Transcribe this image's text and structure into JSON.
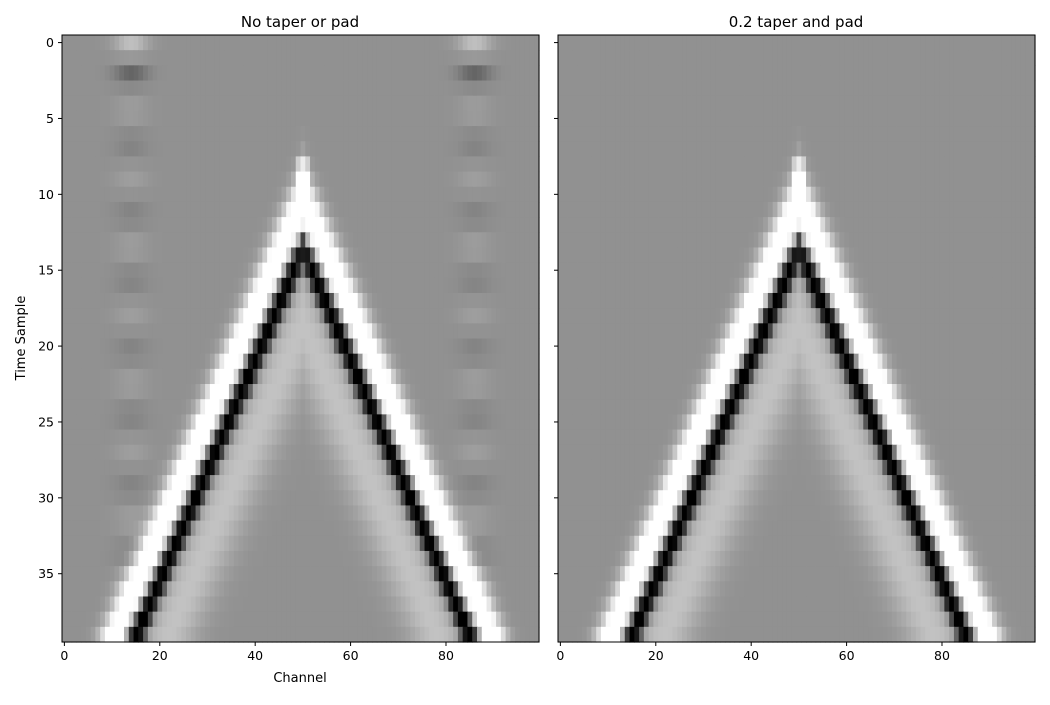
{
  "chart_data": [
    {
      "type": "heatmap",
      "title": "No taper or pad",
      "xlabel": "Channel",
      "ylabel": "Time Sample",
      "colormap": "gray",
      "background_value_color": "#919191",
      "n_channels": 100,
      "n_samples": 40,
      "xlim": [
        -0.5,
        99.5
      ],
      "ylim": [
        39.5,
        -0.5
      ],
      "xticks": [
        0,
        20,
        40,
        60,
        80
      ],
      "yticks": [
        0,
        5,
        10,
        15,
        20,
        25,
        30,
        35
      ],
      "apex": {
        "channel": 50,
        "sample": 13.5
      },
      "events": [
        {
          "description": "white lobe (positive)",
          "channel_at_bottom_left": 8,
          "channel_at_bottom_right": 92
        },
        {
          "description": "black trough (negative)",
          "channel_at_bottom_left": 15,
          "channel_at_bottom_right": 85
        }
      ],
      "edge_artifacts": true
    },
    {
      "type": "heatmap",
      "title": "0.2 taper and pad",
      "xlabel": "",
      "ylabel": "",
      "colormap": "gray",
      "background_value_color": "#919191",
      "n_channels": 100,
      "n_samples": 40,
      "xlim": [
        -0.5,
        99.5
      ],
      "ylim": [
        39.5,
        -0.5
      ],
      "xticks": [
        0,
        20,
        40,
        60,
        80
      ],
      "yticks": [
        0,
        5,
        10,
        15,
        20,
        25,
        30,
        35
      ],
      "apex": {
        "channel": 50,
        "sample": 13.5
      },
      "events": [
        {
          "description": "white lobe (positive)",
          "channel_at_bottom_left": 8,
          "channel_at_bottom_right": 92
        },
        {
          "description": "black trough (negative)",
          "channel_at_bottom_left": 15,
          "channel_at_bottom_right": 85
        }
      ],
      "edge_artifacts": false
    }
  ]
}
